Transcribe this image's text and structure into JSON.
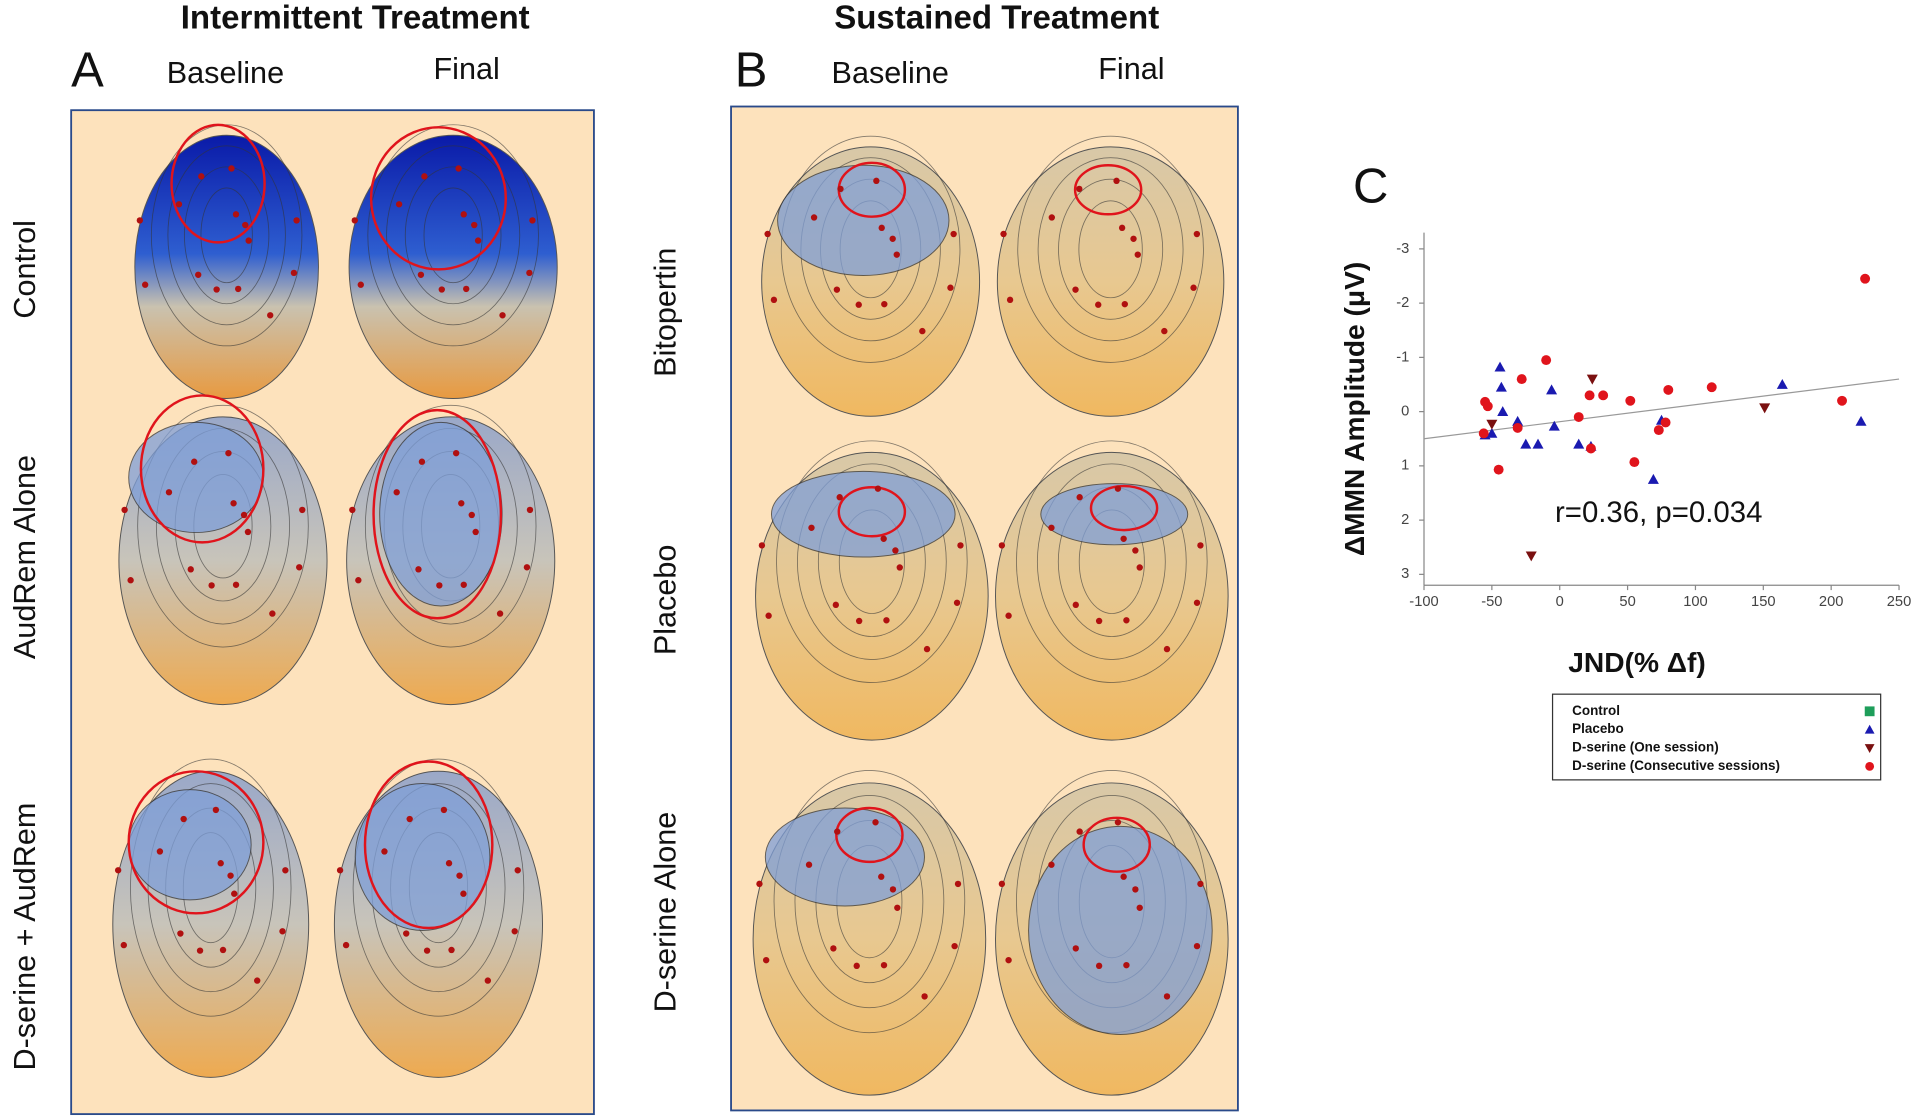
{
  "panels": [
    {
      "label": "A",
      "title": "Intermittent Treatment",
      "columns": [
        "Baseline",
        "Final"
      ],
      "rows": [
        "Control",
        "AudRem Alone",
        "D-serine + AudRem"
      ]
    },
    {
      "label": "B",
      "title": "Sustained Treatment",
      "columns": [
        "Baseline",
        "Final"
      ],
      "rows": [
        "Bitopertin",
        "Placebo",
        "D-serine Alone"
      ]
    }
  ],
  "chart_data": {
    "type": "scatter",
    "panel_label": "C",
    "x_label": "JND(% Δf)",
    "y_label": "ΔMMN  Amplitude (μV)",
    "annotation": "r=0.36, p=0.034",
    "xlim": [
      -100,
      250
    ],
    "xticks": [
      -100,
      -50,
      0,
      50,
      100,
      150,
      200,
      250
    ],
    "ylim": [
      3.2,
      -3.3
    ],
    "yticks": [
      -3,
      -2,
      -1,
      0,
      1,
      2,
      3
    ],
    "legend": "bottom",
    "trendline": {
      "x": [
        -100,
        250
      ],
      "y": [
        0.5,
        -0.6
      ]
    },
    "series": [
      {
        "name": "Control",
        "color": "#1e9e5a",
        "marker": "square",
        "x": [],
        "values": []
      },
      {
        "name": "Placebo",
        "color": "#1a1ab0",
        "marker": "triangle-up",
        "x": [
          -44,
          -43,
          -55,
          -50,
          -42,
          -31,
          -25,
          -16,
          -6,
          -4,
          14,
          23,
          69,
          75,
          164,
          222
        ],
        "values": [
          -0.82,
          -0.45,
          0.43,
          0.4,
          0,
          0.18,
          0.6,
          0.6,
          -0.4,
          0.27,
          0.6,
          0.64,
          1.25,
          0.16,
          -0.5,
          0.18
        ]
      },
      {
        "name": "D-serine (One session)",
        "color": "#7a1010",
        "marker": "triangle-down",
        "x": [
          -50,
          24,
          151,
          -21
        ],
        "values": [
          0.23,
          -0.6,
          -0.07,
          2.66
        ]
      },
      {
        "name": "D-serine (Consecutive sessions)",
        "color": "#e0141c",
        "marker": "circle",
        "x": [
          -28,
          -10,
          -55,
          -53,
          -56,
          -45,
          -31,
          14,
          22,
          32,
          23,
          52,
          55,
          73,
          78,
          80,
          112,
          208,
          225
        ],
        "values": [
          -0.6,
          -0.95,
          -0.18,
          -0.1,
          0.4,
          1.07,
          0.3,
          0.1,
          -0.3,
          -0.3,
          0.68,
          -0.2,
          0.93,
          0.34,
          0.2,
          -0.4,
          -0.45,
          -0.2,
          -2.45
        ]
      }
    ]
  }
}
